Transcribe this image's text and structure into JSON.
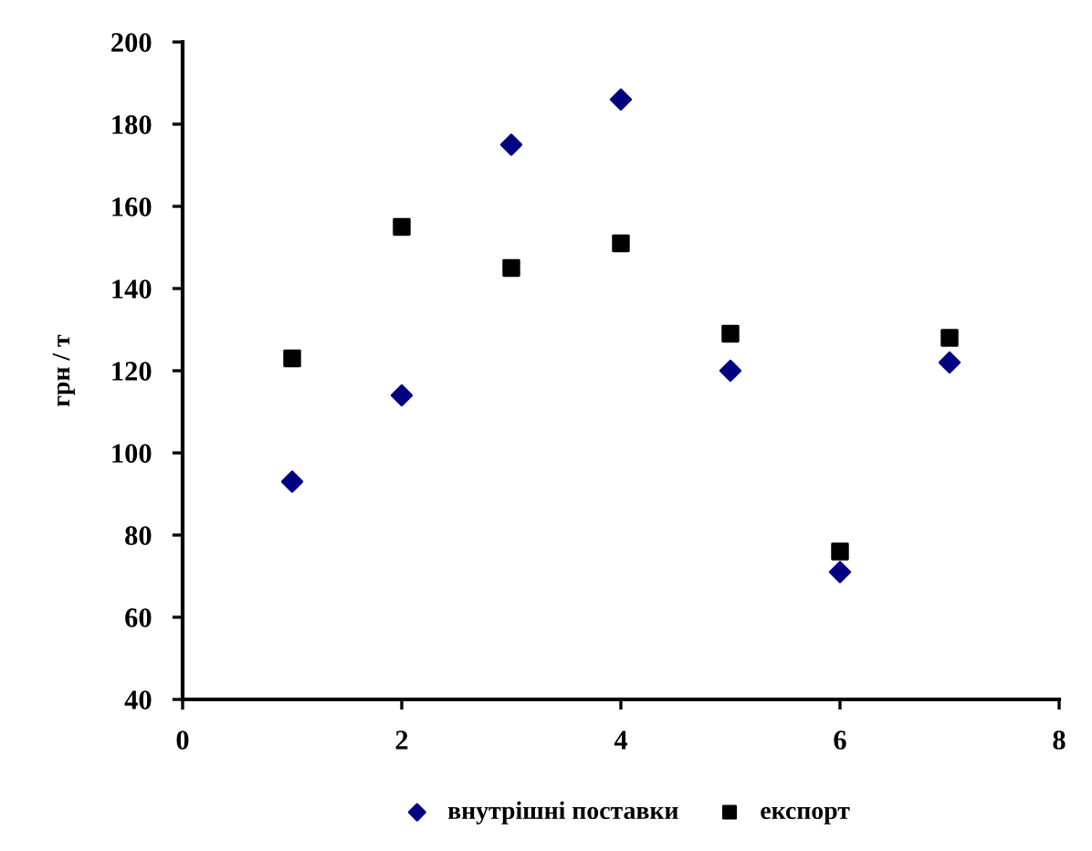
{
  "chart_data": {
    "type": "scatter",
    "ylabel": "грн / т",
    "x": [
      1,
      2,
      3,
      4,
      5,
      6,
      7
    ],
    "series": [
      {
        "name": "внутрішні поставки",
        "color": "#000080",
        "marker": "diamond",
        "values": [
          93,
          114,
          175,
          186,
          120,
          71,
          122
        ]
      },
      {
        "name": "експорт",
        "color": "#000000",
        "marker": "square",
        "values": [
          123,
          155,
          145,
          151,
          129,
          76,
          128
        ]
      }
    ],
    "xlim": [
      0,
      8
    ],
    "xticks": [
      0,
      2,
      4,
      6,
      8
    ],
    "ylim": [
      40,
      200
    ],
    "yticks": [
      40,
      60,
      80,
      100,
      120,
      140,
      160,
      180,
      200
    ],
    "grid": false,
    "legend": "bottom"
  }
}
